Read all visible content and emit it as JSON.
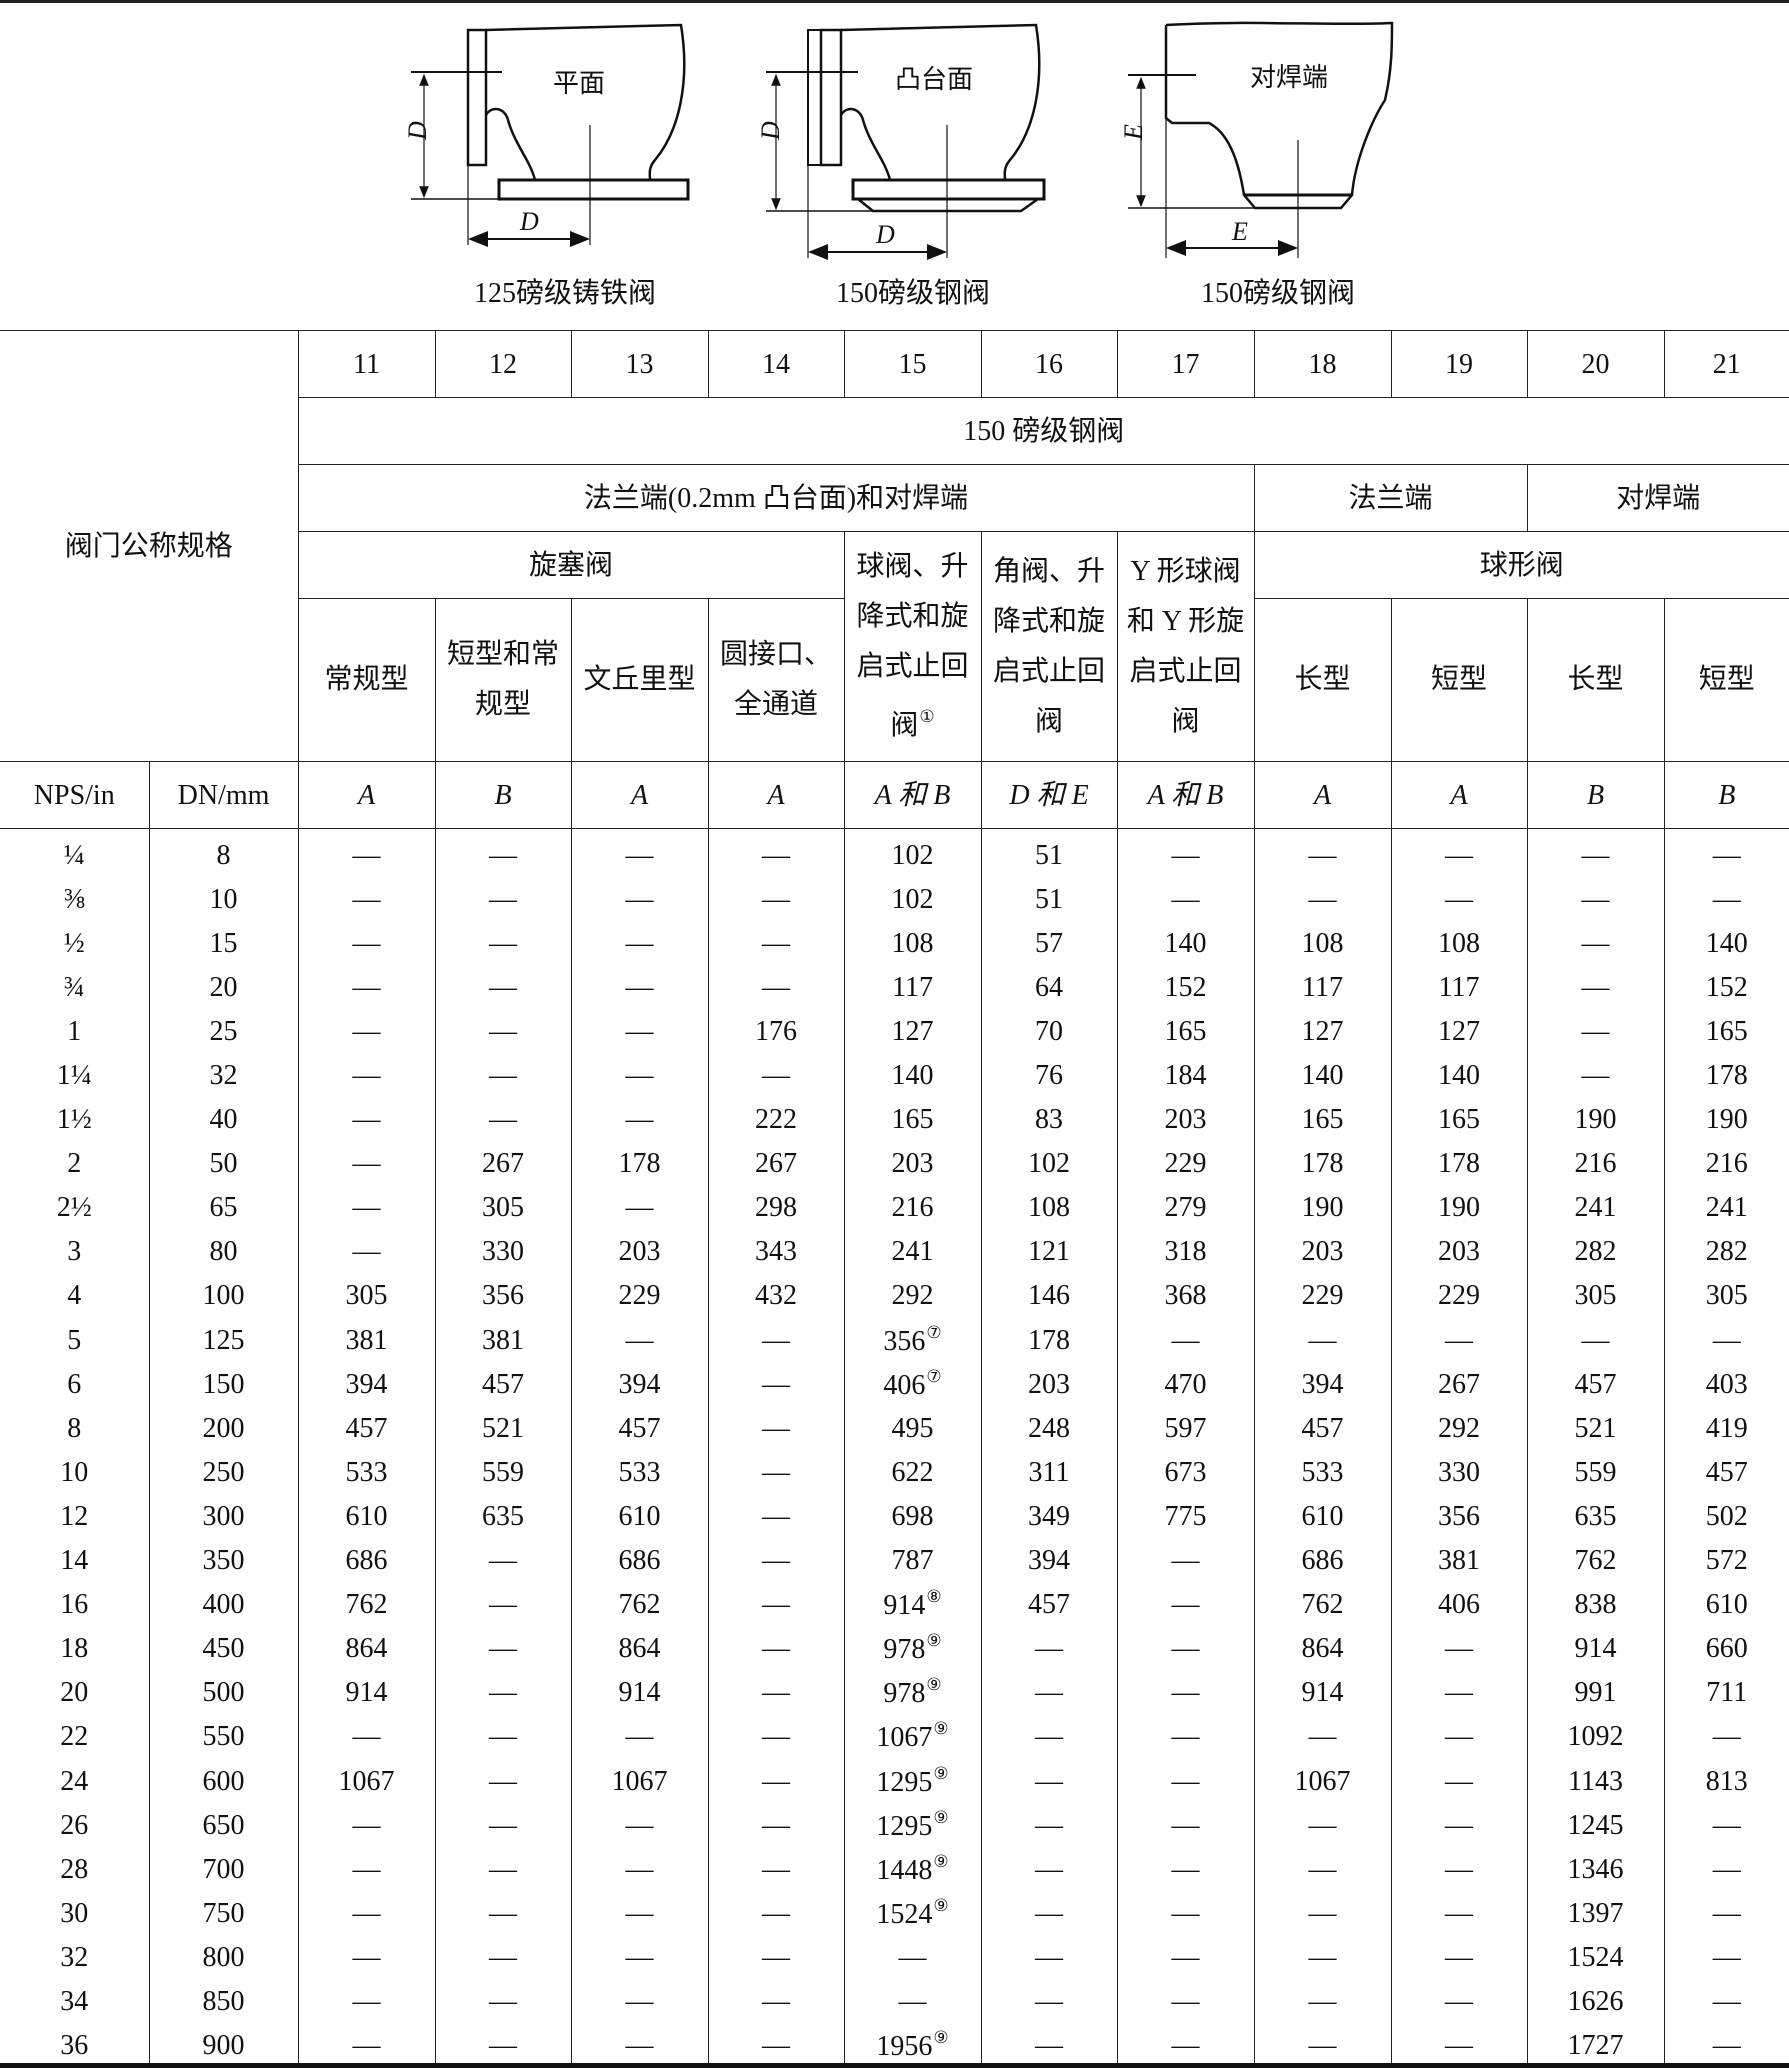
{
  "diagrams": [
    {
      "face_label": "平面",
      "caption": "125磅级铸铁阀",
      "dim_vertical": "D",
      "dim_horizontal": "D"
    },
    {
      "face_label": "凸台面",
      "caption": "150磅级钢阀",
      "dim_vertical": "D",
      "dim_horizontal": "D"
    },
    {
      "face_label": "对焊端",
      "caption": "150磅级钢阀",
      "dim_vertical": "E",
      "dim_horizontal": "E"
    }
  ],
  "header": {
    "size_label": "阀门公称规格",
    "column_numbers": [
      "11",
      "12",
      "13",
      "14",
      "15",
      "16",
      "17",
      "18",
      "19",
      "20",
      "21"
    ],
    "class_label": "150 磅级钢阀",
    "end_groups": [
      "法兰端(0.2mm 凸台面)和对焊端",
      "法兰端",
      "对焊端"
    ],
    "valve_types": {
      "plug": "旋塞阀",
      "col15": "球阀、升降式和旋启式止回阀",
      "col15_note": "①",
      "col16": "角阀、升降式和旋启式止回阀",
      "col17": "Y 形球阀和 Y 形旋启式止回阀",
      "globe": "球形阀"
    },
    "subtypes": [
      "常规型",
      "短型和常规型",
      "文丘里型",
      "圆接口、全通道",
      "长型",
      "短型",
      "长型",
      "短型"
    ],
    "units": [
      "NPS/in",
      "DN/mm"
    ],
    "dimension_letters": [
      "A",
      "B",
      "A",
      "A",
      "A 和 B",
      "D 和 E",
      "A 和 B",
      "A",
      "A",
      "B",
      "B"
    ]
  },
  "rows": [
    [
      "¼",
      "8",
      "—",
      "—",
      "—",
      "—",
      "102",
      "51",
      "—",
      "—",
      "—",
      "—",
      "—"
    ],
    [
      "⅜",
      "10",
      "—",
      "—",
      "—",
      "—",
      "102",
      "51",
      "—",
      "—",
      "—",
      "—",
      "—"
    ],
    [
      "½",
      "15",
      "—",
      "—",
      "—",
      "—",
      "108",
      "57",
      "140",
      "108",
      "108",
      "—",
      "140"
    ],
    [
      "¾",
      "20",
      "—",
      "—",
      "—",
      "—",
      "117",
      "64",
      "152",
      "117",
      "117",
      "—",
      "152"
    ],
    [
      "1",
      "25",
      "—",
      "—",
      "—",
      "176",
      "127",
      "70",
      "165",
      "127",
      "127",
      "—",
      "165"
    ],
    [
      "1¼",
      "32",
      "—",
      "—",
      "—",
      "—",
      "140",
      "76",
      "184",
      "140",
      "140",
      "—",
      "178"
    ],
    [
      "1½",
      "40",
      "—",
      "—",
      "—",
      "222",
      "165",
      "83",
      "203",
      "165",
      "165",
      "190",
      "190"
    ],
    [
      "2",
      "50",
      "—",
      "267",
      "178",
      "267",
      "203",
      "102",
      "229",
      "178",
      "178",
      "216",
      "216"
    ],
    [
      "2½",
      "65",
      "—",
      "305",
      "—",
      "298",
      "216",
      "108",
      "279",
      "190",
      "190",
      "241",
      "241"
    ],
    [
      "3",
      "80",
      "—",
      "330",
      "203",
      "343",
      "241",
      "121",
      "318",
      "203",
      "203",
      "282",
      "282"
    ],
    [
      "4",
      "100",
      "305",
      "356",
      "229",
      "432",
      "292",
      "146",
      "368",
      "229",
      "229",
      "305",
      "305"
    ],
    [
      "5",
      "125",
      "381",
      "381",
      "—",
      "—",
      "356⑦",
      "178",
      "—",
      "—",
      "—",
      "—",
      "—"
    ],
    [
      "6",
      "150",
      "394",
      "457",
      "394",
      "—",
      "406⑦",
      "203",
      "470",
      "394",
      "267",
      "457",
      "403"
    ],
    [
      "8",
      "200",
      "457",
      "521",
      "457",
      "—",
      "495",
      "248",
      "597",
      "457",
      "292",
      "521",
      "419"
    ],
    [
      "10",
      "250",
      "533",
      "559",
      "533",
      "—",
      "622",
      "311",
      "673",
      "533",
      "330",
      "559",
      "457"
    ],
    [
      "12",
      "300",
      "610",
      "635",
      "610",
      "—",
      "698",
      "349",
      "775",
      "610",
      "356",
      "635",
      "502"
    ],
    [
      "14",
      "350",
      "686",
      "—",
      "686",
      "—",
      "787",
      "394",
      "—",
      "686",
      "381",
      "762",
      "572"
    ],
    [
      "16",
      "400",
      "762",
      "—",
      "762",
      "—",
      "914⑧",
      "457",
      "—",
      "762",
      "406",
      "838",
      "610"
    ],
    [
      "18",
      "450",
      "864",
      "—",
      "864",
      "—",
      "978⑨",
      "—",
      "—",
      "864",
      "—",
      "914",
      "660"
    ],
    [
      "20",
      "500",
      "914",
      "—",
      "914",
      "—",
      "978⑨",
      "—",
      "—",
      "914",
      "—",
      "991",
      "711"
    ],
    [
      "22",
      "550",
      "—",
      "—",
      "—",
      "—",
      "1067⑨",
      "—",
      "—",
      "—",
      "—",
      "1092",
      "—"
    ],
    [
      "24",
      "600",
      "1067",
      "—",
      "1067",
      "—",
      "1295⑨",
      "—",
      "—",
      "1067",
      "—",
      "1143",
      "813"
    ],
    [
      "26",
      "650",
      "—",
      "—",
      "—",
      "—",
      "1295⑨",
      "—",
      "—",
      "—",
      "—",
      "1245",
      "—"
    ],
    [
      "28",
      "700",
      "—",
      "—",
      "—",
      "—",
      "1448⑨",
      "—",
      "—",
      "—",
      "—",
      "1346",
      "—"
    ],
    [
      "30",
      "750",
      "—",
      "—",
      "—",
      "—",
      "1524⑨",
      "—",
      "—",
      "—",
      "—",
      "1397",
      "—"
    ],
    [
      "32",
      "800",
      "—",
      "—",
      "—",
      "—",
      "—",
      "—",
      "—",
      "—",
      "—",
      "1524",
      "—"
    ],
    [
      "34",
      "850",
      "—",
      "—",
      "—",
      "—",
      "—",
      "—",
      "—",
      "—",
      "—",
      "1626",
      "—"
    ],
    [
      "36",
      "900",
      "—",
      "—",
      "—",
      "—",
      "1956⑨",
      "—",
      "—",
      "—",
      "—",
      "1727",
      "—"
    ]
  ]
}
